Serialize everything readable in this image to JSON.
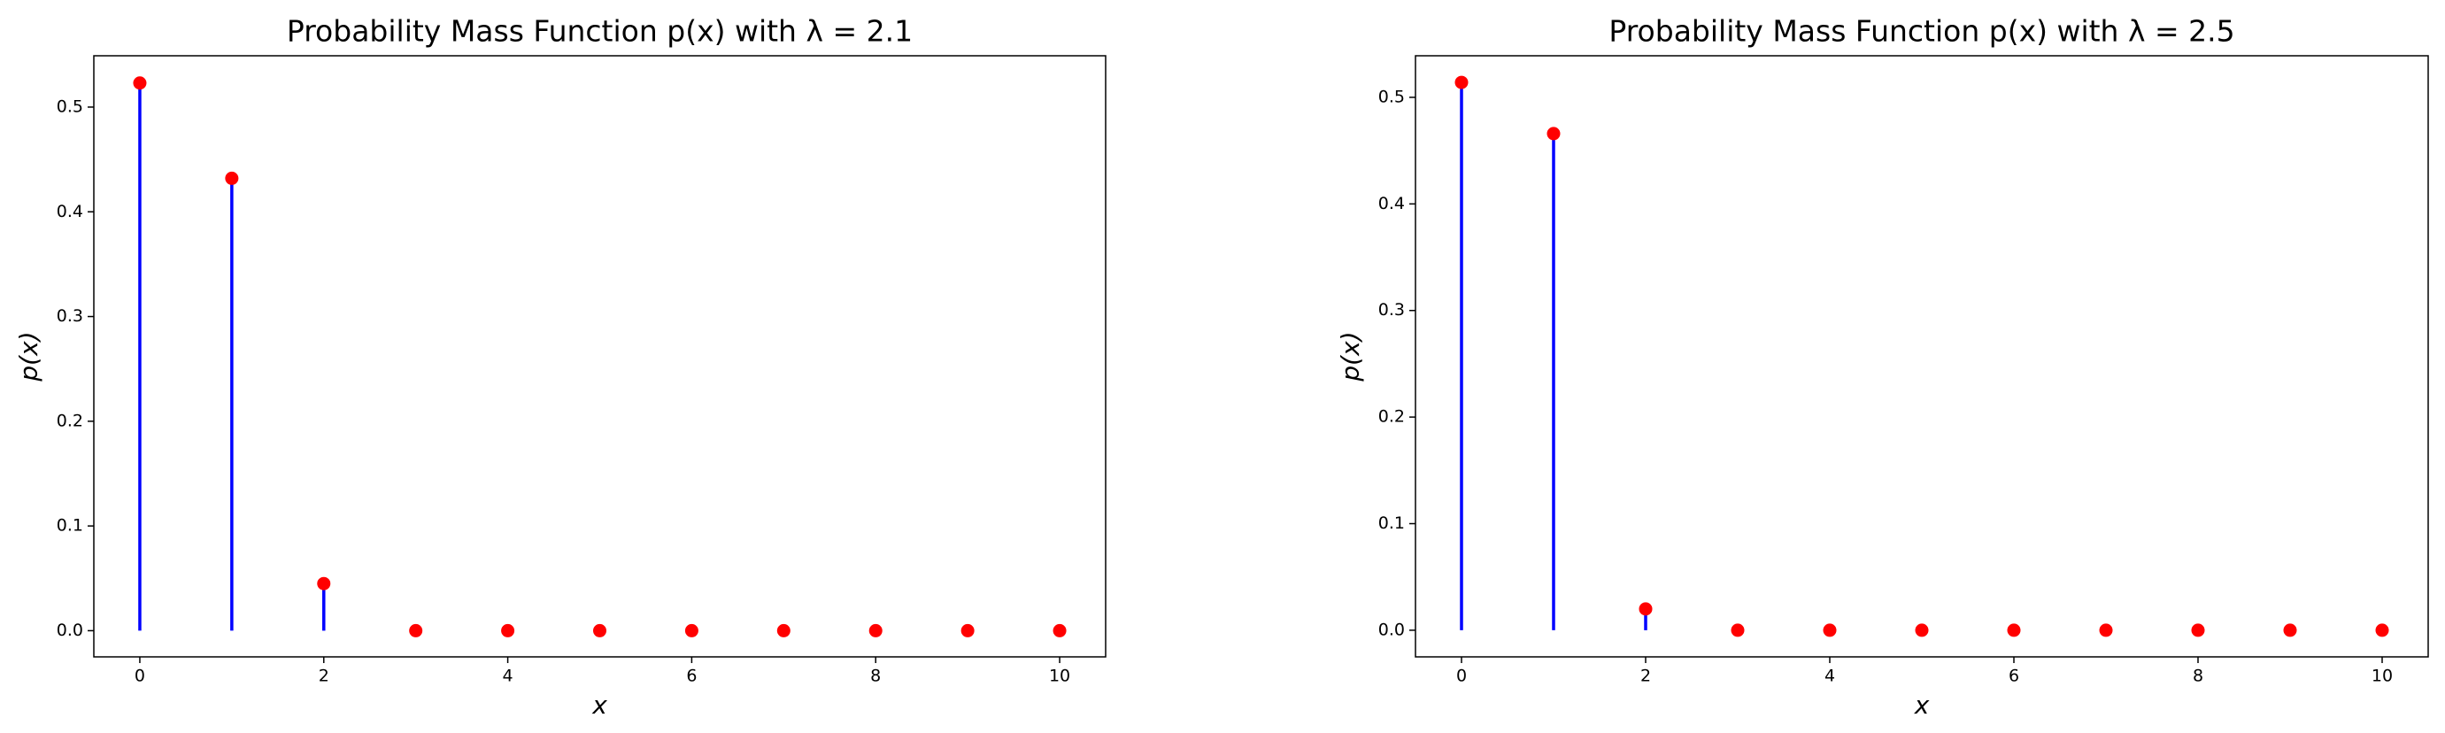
{
  "chart_data": [
    {
      "type": "stem",
      "title": "Probability Mass Function p(x) with λ = 2.1",
      "x_label": "x",
      "y_label": "p(x)",
      "x": [
        0,
        1,
        2,
        3,
        4,
        5,
        6,
        7,
        8,
        9,
        10
      ],
      "values": [
        0.523,
        0.432,
        0.045,
        0,
        0,
        0,
        0,
        0,
        0,
        0,
        0
      ],
      "stem_color": "#0000ff",
      "marker_color": "#ff0000",
      "xlim": [
        -0.5,
        10.5
      ],
      "ylim": [
        -0.025,
        0.549
      ],
      "xticks": [
        0,
        2,
        4,
        6,
        8,
        10
      ],
      "yticks": [
        0.0,
        0.1,
        0.2,
        0.3,
        0.4,
        0.5
      ],
      "grid": false
    },
    {
      "type": "stem",
      "title": "Probability Mass Function p(x) with λ = 2.5",
      "x_label": "x",
      "y_label": "p(x)",
      "x": [
        0,
        1,
        2,
        3,
        4,
        5,
        6,
        7,
        8,
        9,
        10
      ],
      "values": [
        0.514,
        0.466,
        0.02,
        0,
        0,
        0,
        0,
        0,
        0,
        0,
        0
      ],
      "stem_color": "#0000ff",
      "marker_color": "#ff0000",
      "xlim": [
        -0.5,
        10.5
      ],
      "ylim": [
        -0.025,
        0.539
      ],
      "xticks": [
        0,
        2,
        4,
        6,
        8,
        10
      ],
      "yticks": [
        0.0,
        0.1,
        0.2,
        0.3,
        0.4,
        0.5
      ],
      "grid": false
    }
  ]
}
